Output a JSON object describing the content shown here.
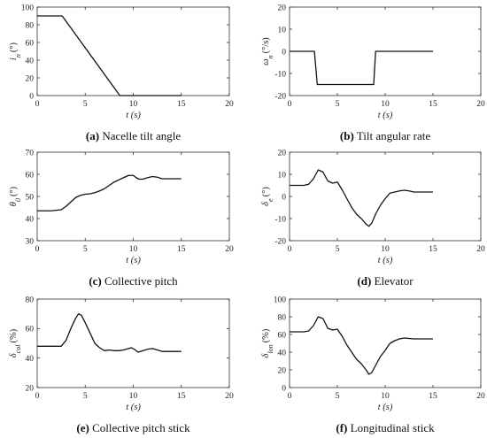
{
  "chart_data": [
    {
      "type": "line",
      "caption_letter": "(a)",
      "caption_text": " Nacelle tilt angle",
      "xlabel": "t (s)",
      "ylabel": "i_n (°)",
      "xlim": [
        0,
        20
      ],
      "ylim": [
        0,
        100
      ],
      "xticks": [
        0,
        5,
        10,
        15,
        20
      ],
      "yticks": [
        0,
        20,
        40,
        60,
        80,
        100
      ],
      "x": [
        0,
        2.6,
        8.6,
        15
      ],
      "y": [
        90,
        90,
        0,
        0
      ]
    },
    {
      "type": "line",
      "caption_letter": "(b)",
      "caption_text": " Tilt angular rate",
      "xlabel": "t (s)",
      "ylabel": "ω_n (°/s)",
      "xlim": [
        0,
        20
      ],
      "ylim": [
        -20,
        20
      ],
      "xticks": [
        0,
        5,
        10,
        15,
        20
      ],
      "yticks": [
        -20,
        -10,
        0,
        10,
        20
      ],
      "x": [
        0,
        2.6,
        2.9,
        8.8,
        9.0,
        15
      ],
      "y": [
        0,
        0,
        -15,
        -15,
        0,
        0
      ]
    },
    {
      "type": "line",
      "caption_letter": "(c)",
      "caption_text": " Collective pitch",
      "xlabel": "t (s)",
      "ylabel": "θ_0 (°)",
      "xlim": [
        0,
        20
      ],
      "ylim": [
        30,
        70
      ],
      "xticks": [
        0,
        5,
        10,
        15,
        20
      ],
      "yticks": [
        30,
        40,
        50,
        60,
        70
      ],
      "x": [
        0,
        1.5,
        2.5,
        3.0,
        3.5,
        4.0,
        4.5,
        5.0,
        5.5,
        6.0,
        6.5,
        7.0,
        7.5,
        8.0,
        8.5,
        9.0,
        9.5,
        10.0,
        10.3,
        10.6,
        11.0,
        11.5,
        12.0,
        12.5,
        13.0,
        14.0,
        15.0
      ],
      "y": [
        43.5,
        43.5,
        44,
        45.5,
        47.5,
        49.5,
        50.5,
        51,
        51.2,
        51.7,
        52.5,
        53.5,
        55,
        56.5,
        57.5,
        58.5,
        59.5,
        59.5,
        58.5,
        57.8,
        57.8,
        58.5,
        59,
        58.7,
        58,
        58,
        58
      ]
    },
    {
      "type": "line",
      "caption_letter": "(d)",
      "caption_text": " Elevator",
      "xlabel": "t (s)",
      "ylabel": "δ_e (°)",
      "xlim": [
        0,
        20
      ],
      "ylim": [
        -20,
        20
      ],
      "xticks": [
        0,
        5,
        10,
        15,
        20
      ],
      "yticks": [
        -20,
        -10,
        0,
        10,
        20
      ],
      "x": [
        0,
        1.5,
        2.0,
        2.5,
        3.0,
        3.5,
        4.0,
        4.5,
        5.0,
        5.5,
        6.0,
        6.5,
        7.0,
        7.5,
        8.0,
        8.3,
        8.6,
        9.0,
        9.5,
        10.0,
        10.5,
        11.0,
        11.5,
        12.0,
        12.5,
        13.0,
        14.0,
        15.0
      ],
      "y": [
        5,
        5,
        5.5,
        8,
        12,
        11,
        7,
        6,
        6.5,
        3,
        -1,
        -5,
        -8,
        -10,
        -12.5,
        -13.5,
        -12,
        -8,
        -4,
        -1,
        1.5,
        2,
        2.5,
        2.8,
        2.5,
        2,
        2,
        2
      ]
    },
    {
      "type": "line",
      "caption_letter": "(e)",
      "caption_text": " Collective pitch stick",
      "xlabel": "t (s)",
      "ylabel": "δ_col (%)",
      "xlim": [
        0,
        20
      ],
      "ylim": [
        20,
        80
      ],
      "xticks": [
        0,
        5,
        10,
        15,
        20
      ],
      "yticks": [
        20,
        40,
        60,
        80
      ],
      "x": [
        0,
        2.5,
        3.0,
        3.5,
        4.0,
        4.3,
        4.6,
        5.0,
        5.5,
        6.0,
        6.5,
        7.0,
        7.5,
        8.0,
        8.5,
        9.0,
        9.5,
        9.8,
        10.1,
        10.5,
        11.0,
        11.5,
        12.0,
        12.5,
        13.0,
        14.0,
        15.0
      ],
      "y": [
        48,
        48,
        52,
        60,
        67,
        70,
        69,
        64,
        57,
        50,
        47,
        45,
        45.5,
        45,
        45,
        45.5,
        46.5,
        47,
        46,
        44,
        45,
        46,
        46.5,
        45.5,
        44.5,
        44.5,
        44.5
      ]
    },
    {
      "type": "line",
      "caption_letter": "(f)",
      "caption_text": " Longitudinal stick",
      "xlabel": "t (s)",
      "ylabel": "δ_lon (%)",
      "xlim": [
        0,
        20
      ],
      "ylim": [
        0,
        100
      ],
      "xticks": [
        0,
        5,
        10,
        15,
        20
      ],
      "yticks": [
        0,
        20,
        40,
        60,
        80,
        100
      ],
      "x": [
        0,
        1.5,
        2.0,
        2.5,
        3.0,
        3.5,
        4.0,
        4.5,
        5.0,
        5.5,
        6.0,
        6.5,
        7.0,
        7.5,
        8.0,
        8.3,
        8.6,
        9.0,
        9.5,
        10.0,
        10.5,
        11.0,
        11.5,
        12.0,
        12.5,
        13.0,
        14.0,
        15.0
      ],
      "y": [
        63,
        63,
        64,
        70,
        80,
        78,
        67,
        65,
        66,
        58,
        48,
        40,
        32,
        27,
        20,
        15,
        17,
        25,
        35,
        42,
        50,
        53,
        55,
        56,
        55.5,
        55,
        55,
        55
      ]
    }
  ]
}
